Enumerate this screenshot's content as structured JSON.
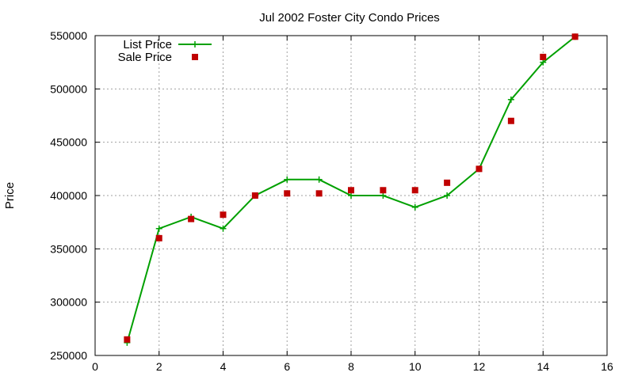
{
  "chart_data": {
    "type": "line",
    "title": "Jul 2002 Foster City Condo Prices",
    "xlabel": "",
    "ylabel": "Price",
    "xlim": [
      0,
      16
    ],
    "ylim": [
      250000,
      550000
    ],
    "xticks": [
      0,
      2,
      4,
      6,
      8,
      10,
      12,
      14,
      16
    ],
    "yticks": [
      250000,
      300000,
      350000,
      400000,
      450000,
      500000,
      550000
    ],
    "grid": true,
    "legend_position": "top-left",
    "series": [
      {
        "name": "List Price",
        "style": "lines+crosses",
        "color": "#00a000",
        "x": [
          1,
          2,
          3,
          4,
          5,
          6,
          7,
          8,
          9,
          10,
          11,
          12,
          13,
          14,
          15
        ],
        "y": [
          262000,
          369000,
          380000,
          369000,
          400000,
          415000,
          415000,
          400000,
          400000,
          389000,
          400000,
          425000,
          490000,
          525000,
          549000
        ]
      },
      {
        "name": "Sale Price",
        "style": "squares",
        "color": "#c00000",
        "x": [
          1,
          2,
          3,
          4,
          5,
          6,
          7,
          8,
          9,
          10,
          11,
          12,
          13,
          14,
          15
        ],
        "y": [
          265000,
          360000,
          378000,
          382000,
          400000,
          402000,
          402000,
          405000,
          405000,
          405000,
          412000,
          425000,
          470000,
          530000,
          549000
        ]
      }
    ]
  }
}
